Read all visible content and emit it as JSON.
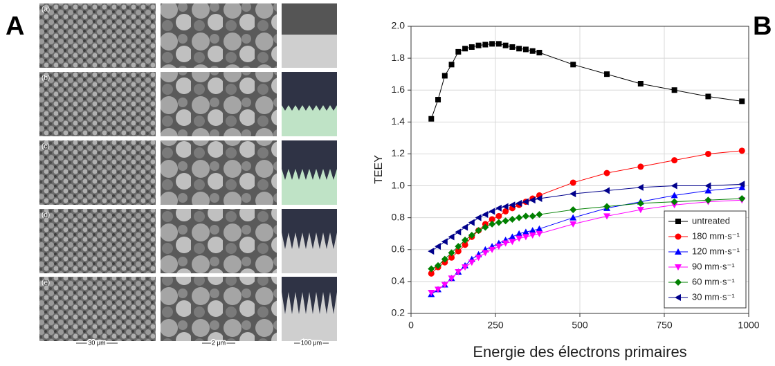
{
  "figure": {
    "panel_a": {
      "label": "A",
      "row_labels": [
        "(a)",
        "(b)",
        "(c)",
        "(d)",
        "(e)"
      ],
      "scale_bars": [
        "30 μm",
        "2 μm",
        "100 μm"
      ]
    },
    "panel_b": {
      "label": "B"
    }
  },
  "chart_data": {
    "type": "line",
    "xlabel": "Energie des électrons primaires",
    "ylabel": "TEEY",
    "x": [
      60,
      80,
      100,
      120,
      140,
      160,
      180,
      200,
      220,
      240,
      260,
      280,
      300,
      320,
      340,
      360,
      380,
      480,
      580,
      680,
      780,
      880,
      980
    ],
    "series": [
      {
        "name": "untreated",
        "color": "#000000",
        "marker": "square",
        "values": [
          1.42,
          1.54,
          1.69,
          1.76,
          1.84,
          1.86,
          1.87,
          1.88,
          1.885,
          1.89,
          1.89,
          1.88,
          1.87,
          1.86,
          1.855,
          1.845,
          1.835,
          1.76,
          1.7,
          1.64,
          1.6,
          1.56,
          1.53
        ]
      },
      {
        "name": "180 mm·s⁻¹",
        "color": "#ff0000",
        "marker": "circle",
        "values": [
          0.45,
          0.49,
          0.52,
          0.55,
          0.59,
          0.63,
          0.68,
          0.72,
          0.76,
          0.79,
          0.81,
          0.84,
          0.86,
          0.88,
          0.9,
          0.92,
          0.94,
          1.02,
          1.08,
          1.12,
          1.16,
          1.2,
          1.22
        ]
      },
      {
        "name": "120 mm·s⁻¹",
        "color": "#0000ff",
        "marker": "triangle-up",
        "values": [
          0.32,
          0.35,
          0.38,
          0.42,
          0.46,
          0.5,
          0.54,
          0.57,
          0.6,
          0.62,
          0.64,
          0.66,
          0.68,
          0.7,
          0.71,
          0.72,
          0.73,
          0.8,
          0.86,
          0.9,
          0.94,
          0.97,
          0.99
        ]
      },
      {
        "name": "90 mm·s⁻¹",
        "color": "#ff00ff",
        "marker": "triangle-down",
        "values": [
          0.33,
          0.35,
          0.38,
          0.42,
          0.46,
          0.49,
          0.52,
          0.55,
          0.58,
          0.6,
          0.62,
          0.64,
          0.65,
          0.67,
          0.68,
          0.69,
          0.7,
          0.76,
          0.81,
          0.85,
          0.88,
          0.9,
          0.91
        ]
      },
      {
        "name": "60 mm·s⁻¹",
        "color": "#008000",
        "marker": "diamond",
        "values": [
          0.48,
          0.5,
          0.54,
          0.58,
          0.62,
          0.66,
          0.69,
          0.72,
          0.74,
          0.76,
          0.77,
          0.78,
          0.79,
          0.8,
          0.81,
          0.81,
          0.82,
          0.85,
          0.87,
          0.89,
          0.9,
          0.91,
          0.92
        ]
      },
      {
        "name": "30 mm·s⁻¹",
        "color": "#00008b",
        "marker": "triangle-left",
        "values": [
          0.59,
          0.62,
          0.65,
          0.68,
          0.71,
          0.74,
          0.77,
          0.8,
          0.82,
          0.84,
          0.86,
          0.87,
          0.88,
          0.89,
          0.9,
          0.91,
          0.92,
          0.95,
          0.97,
          0.99,
          1.0,
          1.0,
          1.01
        ]
      }
    ],
    "xlim": [
      0,
      1000
    ],
    "xticks": [
      0,
      250,
      500,
      750,
      1000
    ],
    "ylim": [
      0.2,
      2
    ],
    "yticks": [
      0.2,
      0.4,
      0.6,
      0.8,
      {
        "value": 1,
        "label": "1.0"
      },
      1.2,
      1.4,
      1.6,
      1.8,
      {
        "value": 2,
        "label": "2.0"
      }
    ],
    "grid": true,
    "legend": "lower right"
  }
}
